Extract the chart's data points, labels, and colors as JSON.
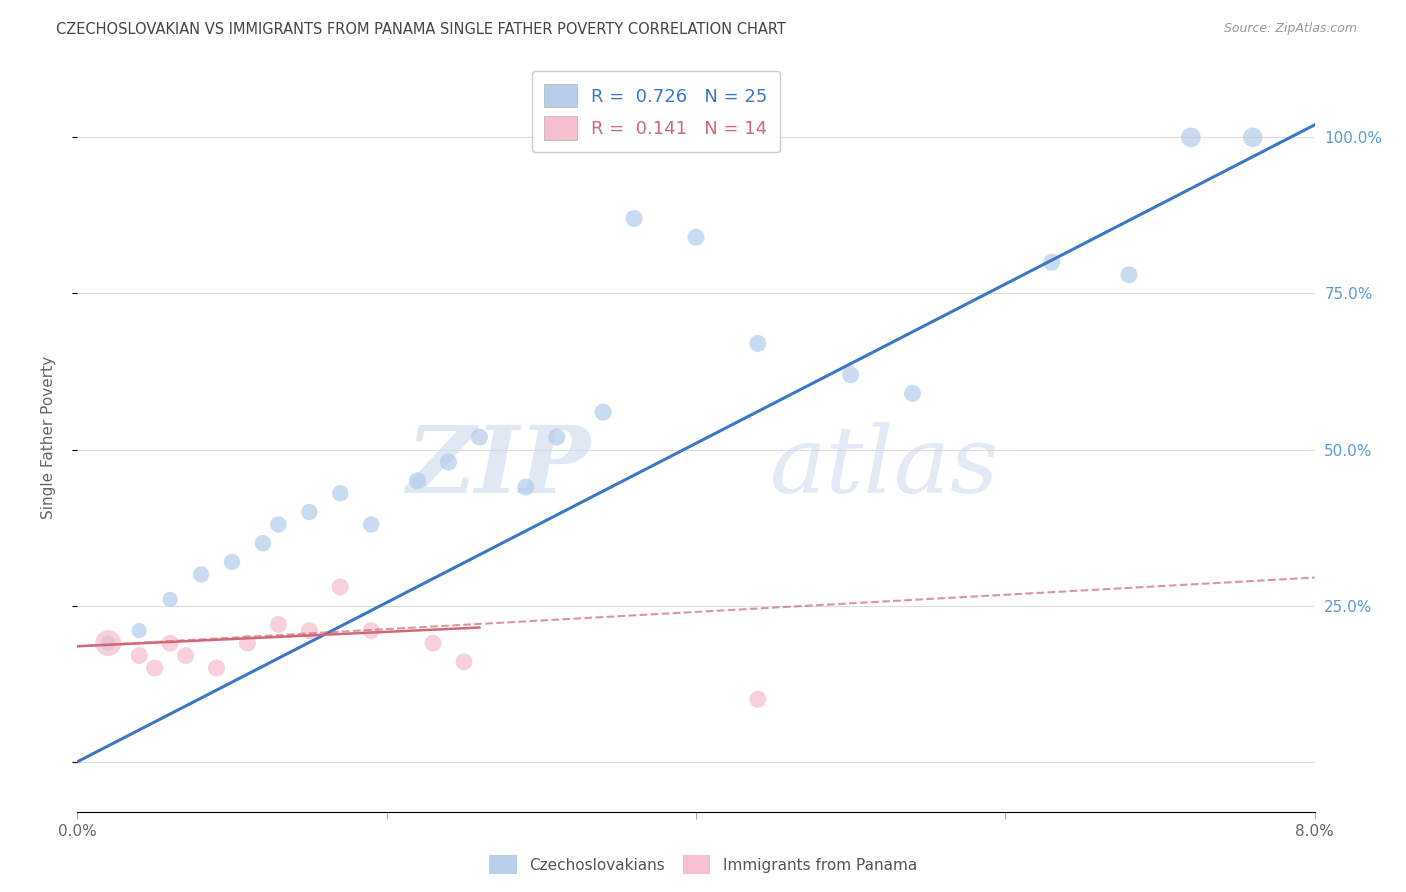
{
  "title": "CZECHOSLOVAKIAN VS IMMIGRANTS FROM PANAMA SINGLE FATHER POVERTY CORRELATION CHART",
  "source": "Source: ZipAtlas.com",
  "ylabel": "Single Father Poverty",
  "x_min": 0.0,
  "x_max": 0.08,
  "y_min": -0.08,
  "y_max": 1.12,
  "legend_entries": [
    {
      "label": "Czechoslovakians",
      "color": "#adc8e8",
      "R": "0.726",
      "N": "25"
    },
    {
      "label": "Immigrants from Panama",
      "color": "#f5b8c8",
      "R": "0.141",
      "N": "14"
    }
  ],
  "watermark_zip": "ZIP",
  "watermark_atlas": "atlas",
  "blue_scatter_x": [
    0.002,
    0.004,
    0.006,
    0.008,
    0.01,
    0.012,
    0.013,
    0.015,
    0.017,
    0.019,
    0.022,
    0.024,
    0.026,
    0.029,
    0.031,
    0.034,
    0.036,
    0.04,
    0.044,
    0.05,
    0.054,
    0.063,
    0.068,
    0.072,
    0.076
  ],
  "blue_scatter_y": [
    0.19,
    0.21,
    0.26,
    0.3,
    0.32,
    0.35,
    0.38,
    0.4,
    0.43,
    0.38,
    0.45,
    0.48,
    0.52,
    0.44,
    0.52,
    0.56,
    0.87,
    0.84,
    0.67,
    0.62,
    0.59,
    0.8,
    0.78,
    1.0,
    1.0
  ],
  "blue_scatter_sizes": [
    120,
    120,
    120,
    140,
    140,
    140,
    140,
    140,
    140,
    140,
    150,
    150,
    150,
    150,
    150,
    150,
    150,
    150,
    150,
    150,
    150,
    150,
    150,
    200,
    200
  ],
  "pink_scatter_x": [
    0.002,
    0.004,
    0.005,
    0.006,
    0.007,
    0.009,
    0.011,
    0.013,
    0.015,
    0.017,
    0.019,
    0.023,
    0.025,
    0.044
  ],
  "pink_scatter_y": [
    0.19,
    0.17,
    0.15,
    0.19,
    0.17,
    0.15,
    0.19,
    0.22,
    0.21,
    0.28,
    0.21,
    0.19,
    0.16,
    0.1
  ],
  "pink_scatter_sizes": [
    350,
    150,
    150,
    150,
    150,
    150,
    150,
    150,
    150,
    150,
    150,
    150,
    150,
    150
  ],
  "blue_line_x": [
    0.0,
    0.08
  ],
  "blue_line_y": [
    0.0,
    1.02
  ],
  "pink_solid_line_x": [
    0.0,
    0.026
  ],
  "pink_solid_line_y": [
    0.185,
    0.215
  ],
  "pink_dash_line_x": [
    0.0,
    0.08
  ],
  "pink_dash_line_y": [
    0.185,
    0.295
  ],
  "background_color": "#ffffff",
  "grid_color": "#dddddd",
  "title_color": "#444444",
  "right_axis_color": "#5b9bd5",
  "blue_line_color": "#3b78c4",
  "pink_line_color": "#d06878",
  "scatter_alpha": 0.65
}
